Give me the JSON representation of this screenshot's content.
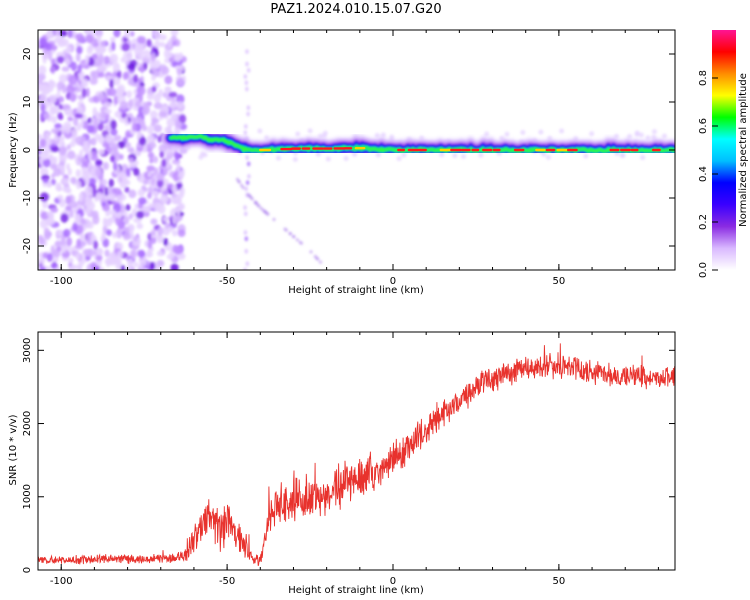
{
  "title": "PAZ1.2024.010.15.07.G20",
  "chart_data": [
    {
      "type": "heatmap",
      "xlabel": "Height of straight line (km)",
      "ylabel": "Frequency (Hz)",
      "xlim": [
        -107,
        85
      ],
      "ylim": [
        -25,
        25
      ],
      "x_ticks": [
        -100,
        -50,
        0,
        50
      ],
      "y_ticks": [
        -20,
        -10,
        0,
        10,
        20
      ],
      "colorbar": {
        "label": "Normalized spectral amplitude",
        "range": [
          0,
          1
        ],
        "ticks": [
          "0.0",
          "0.2",
          "0.4",
          "0.6",
          "0.8"
        ],
        "colors": [
          "#ffffff",
          "#d9b8ff",
          "#8a2be2",
          "#3a00ff",
          "#0000ff",
          "#00bfff",
          "#00ffff",
          "#00ff00",
          "#ffff00",
          "#ff8c00",
          "#ff0000",
          "#ff1493"
        ]
      },
      "signal_line": {
        "x": [
          -67,
          -62,
          -58,
          -55,
          -52,
          -50,
          -47,
          -45,
          -43,
          -40,
          -30,
          -20,
          -10,
          0,
          20,
          40,
          60,
          85
        ],
        "y": [
          2.5,
          2.6,
          2.8,
          2.0,
          2.2,
          1.8,
          1.0,
          0.2,
          0.0,
          0.0,
          0.3,
          0.3,
          0.4,
          0.0,
          0.0,
          0.0,
          0.0,
          0.0
        ]
      },
      "noise_region_x": [
        -107,
        -63
      ],
      "noise_amplitude": 0.35,
      "leakage_track": {
        "x": [
          -47,
          -44,
          -40,
          -35,
          -30,
          -25,
          -21
        ],
        "y": [
          -6,
          -9,
          -12,
          -15,
          -18,
          -21,
          -24
        ]
      }
    },
    {
      "type": "line",
      "xlabel": "Height of straight line (km)",
      "ylabel": "SNR (10 * v/v)",
      "xlim": [
        -107,
        85
      ],
      "ylim": [
        0,
        3250
      ],
      "x_ticks": [
        -100,
        -50,
        0,
        50
      ],
      "y_ticks": [
        0,
        1000,
        2000,
        3000
      ],
      "color": "#e8322d",
      "x": [
        -107,
        -95,
        -85,
        -75,
        -65,
        -62,
        -58,
        -55,
        -52,
        -50,
        -47,
        -45,
        -42,
        -40,
        -38,
        -35,
        -30,
        -25,
        -20,
        -15,
        -10,
        -5,
        0,
        5,
        10,
        15,
        20,
        25,
        30,
        35,
        40,
        45,
        50,
        55,
        60,
        65,
        70,
        75,
        80,
        85
      ],
      "values": [
        130,
        140,
        150,
        150,
        160,
        250,
        600,
        750,
        500,
        650,
        450,
        350,
        150,
        100,
        650,
        900,
        950,
        950,
        1050,
        1150,
        1250,
        1300,
        1500,
        1700,
        1900,
        2100,
        2300,
        2500,
        2600,
        2700,
        2750,
        2750,
        2800,
        2750,
        2700,
        2650,
        2650,
        2650,
        2600,
        2700
      ],
      "noise": [
        60,
        60,
        60,
        60,
        60,
        120,
        250,
        300,
        260,
        280,
        220,
        200,
        90,
        80,
        220,
        260,
        280,
        300,
        300,
        300,
        280,
        260,
        250,
        230,
        220,
        200,
        180,
        170,
        170,
        170,
        170,
        170,
        170,
        160,
        160,
        160,
        150,
        150,
        150,
        150
      ]
    }
  ]
}
